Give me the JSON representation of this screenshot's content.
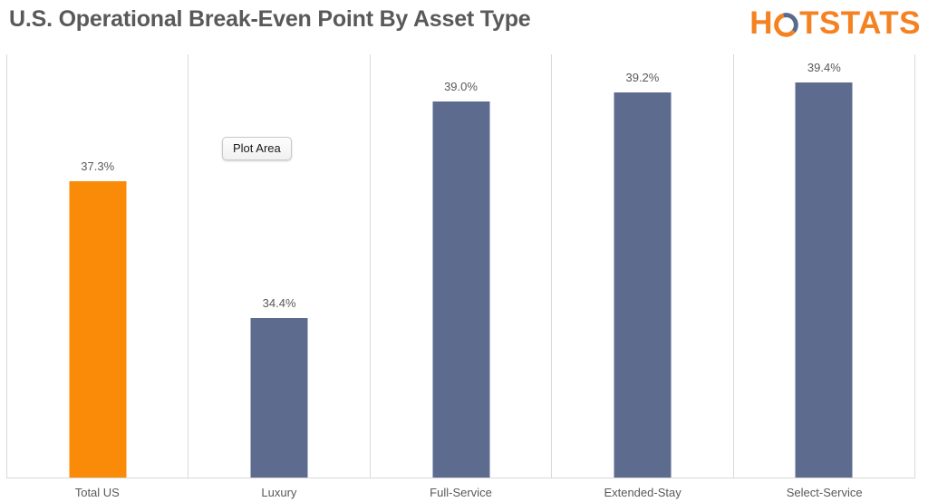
{
  "header": {
    "title": "U.S. Operational Break-Even Point By Asset Type",
    "logo": {
      "text_before_ring": "H",
      "text_after_ring": "TSTATS",
      "name": "HOTSTATS"
    }
  },
  "plot_area_tooltip": {
    "label": "Plot Area"
  },
  "chart_data": {
    "type": "bar",
    "title": "U.S. Operational Break-Even Point By Asset Type",
    "categories": [
      "Total US",
      "Luxury",
      "Full-Service",
      "Extended-Stay",
      "Select-Service"
    ],
    "values": [
      37.3,
      34.4,
      39.0,
      39.2,
      39.4
    ],
    "data_labels": [
      "37.3%",
      "34.4%",
      "39.0%",
      "39.2%",
      "39.4%"
    ],
    "xlabel": "",
    "ylabel": "",
    "ylim": [
      31,
      40
    ],
    "y_axis_visible": false,
    "grid": "vertical-category-separators",
    "legend_position": "none",
    "bar_colors": [
      "#F98B09",
      "#5D6B8F",
      "#5D6B8F",
      "#5D6B8F",
      "#5D6B8F"
    ]
  },
  "colors": {
    "accent_orange": "#F98B09",
    "slate_blue": "#5D6B8F",
    "text_gray": "#595959",
    "grid_line": "#D9D9D9",
    "logo_orange": "#F58220",
    "logo_ring_slate": "#5A6A8A"
  }
}
